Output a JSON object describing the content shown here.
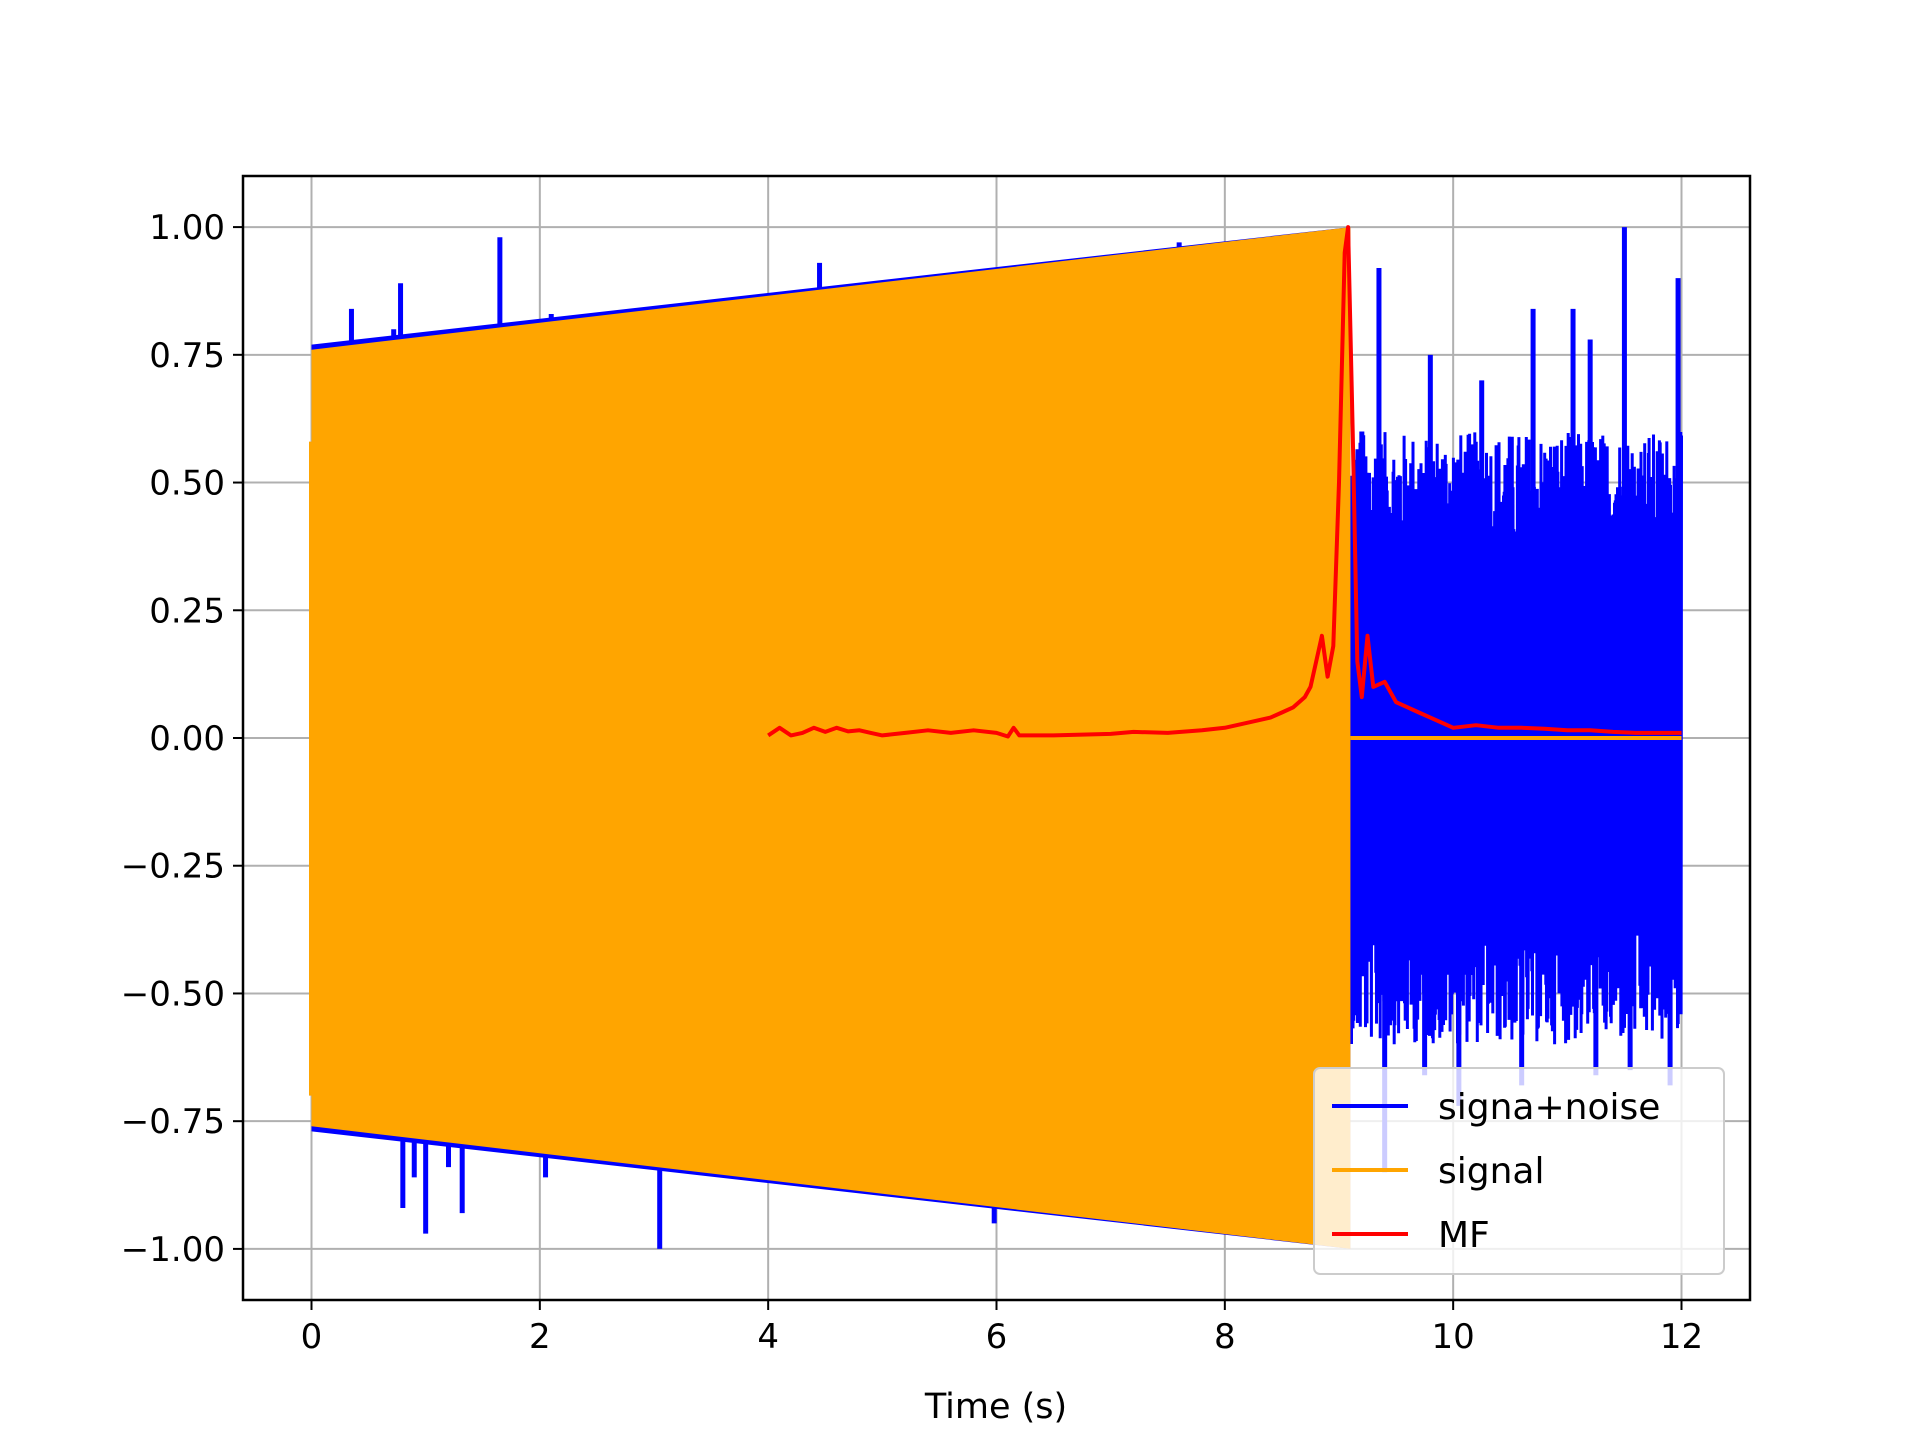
{
  "chart_data": {
    "type": "line",
    "title": "",
    "xlabel": "Time (s)",
    "ylabel": "",
    "xlim": [
      -0.6,
      12.6
    ],
    "ylim": [
      -1.1,
      1.1
    ],
    "grid": true,
    "legend_position": "lower-right",
    "x_ticks": [
      0,
      2,
      4,
      6,
      8,
      10,
      12
    ],
    "x_tick_labels": [
      "0",
      "2",
      "4",
      "6",
      "8",
      "10",
      "12"
    ],
    "y_ticks": [
      1.0,
      0.75,
      0.5,
      0.25,
      0.0,
      -0.25,
      -0.5,
      -0.75,
      -1.0
    ],
    "y_tick_labels": [
      "1.00",
      "0.75",
      "0.50",
      "0.25",
      "0.00",
      "−0.25",
      "−0.50",
      "−0.75",
      "−1.00"
    ],
    "series": [
      {
        "name": "signa+noise",
        "color": "#0000ff",
        "envelope": {
          "signal_portion": {
            "x_range": [
              0,
              9.1
            ],
            "amplitude_start": 0.77,
            "amplitude_end": 1.0
          },
          "noise_portion": {
            "x_range": [
              9.1,
              12.0
            ],
            "typical_amplitude": 0.6
          }
        },
        "spikes": [
          {
            "x": 0.35,
            "y": 0.84
          },
          {
            "x": 0.72,
            "y": 0.8
          },
          {
            "x": 0.78,
            "y": 0.89
          },
          {
            "x": 1.65,
            "y": 0.98
          },
          {
            "x": 2.1,
            "y": 0.83
          },
          {
            "x": 3.05,
            "y": 0.84
          },
          {
            "x": 4.45,
            "y": 0.93
          },
          {
            "x": 5.2,
            "y": 0.9
          },
          {
            "x": 7.6,
            "y": 0.97
          },
          {
            "x": 0.8,
            "y": -0.92
          },
          {
            "x": 0.9,
            "y": -0.86
          },
          {
            "x": 1.0,
            "y": -0.97
          },
          {
            "x": 1.2,
            "y": -0.84
          },
          {
            "x": 1.32,
            "y": -0.93
          },
          {
            "x": 1.58,
            "y": -0.8
          },
          {
            "x": 2.05,
            "y": -0.86
          },
          {
            "x": 2.45,
            "y": -0.82
          },
          {
            "x": 3.05,
            "y": -1.0
          },
          {
            "x": 5.98,
            "y": -0.95
          },
          {
            "x": 9.2,
            "y": 0.6
          },
          {
            "x": 9.35,
            "y": 0.92
          },
          {
            "x": 9.8,
            "y": 0.75
          },
          {
            "x": 10.7,
            "y": 0.84
          },
          {
            "x": 11.05,
            "y": 0.84
          },
          {
            "x": 11.5,
            "y": 1.0
          },
          {
            "x": 11.97,
            "y": 0.9
          },
          {
            "x": 11.2,
            "y": 0.78
          },
          {
            "x": 10.25,
            "y": 0.7
          },
          {
            "x": 9.4,
            "y": -0.85
          },
          {
            "x": 9.75,
            "y": -0.66
          },
          {
            "x": 10.05,
            "y": -0.72
          },
          {
            "x": 10.6,
            "y": -0.68
          },
          {
            "x": 11.25,
            "y": -0.66
          },
          {
            "x": 11.55,
            "y": -0.65
          },
          {
            "x": 11.9,
            "y": -0.68
          }
        ]
      },
      {
        "name": "signal",
        "color": "#ffa500",
        "envelope": {
          "x_range": [
            0,
            9.1
          ],
          "amplitude_start": 0.76,
          "amplitude_end": 1.0
        },
        "flat_after": {
          "x_range": [
            9.1,
            12.0
          ],
          "y": 0.0
        }
      },
      {
        "name": "MF",
        "color": "#ff0000",
        "x": [
          4.0,
          4.1,
          4.2,
          4.3,
          4.4,
          4.5,
          4.6,
          4.7,
          4.8,
          4.9,
          5.0,
          5.2,
          5.4,
          5.6,
          5.8,
          6.0,
          6.1,
          6.15,
          6.2,
          6.5,
          7.0,
          7.2,
          7.5,
          7.8,
          8.0,
          8.2,
          8.4,
          8.5,
          8.6,
          8.7,
          8.75,
          8.8,
          8.85,
          8.9,
          8.95,
          9.0,
          9.05,
          9.08,
          9.12,
          9.16,
          9.2,
          9.25,
          9.3,
          9.4,
          9.5,
          9.6,
          9.7,
          9.8,
          9.9,
          10.0,
          10.2,
          10.4,
          10.6,
          10.8,
          11.0,
          11.2,
          11.4,
          11.6,
          11.8,
          12.0
        ],
        "values": [
          0.005,
          0.02,
          0.005,
          0.01,
          0.02,
          0.012,
          0.02,
          0.013,
          0.015,
          0.01,
          0.005,
          0.01,
          0.015,
          0.01,
          0.015,
          0.01,
          0.003,
          0.02,
          0.005,
          0.005,
          0.008,
          0.012,
          0.01,
          0.015,
          0.02,
          0.03,
          0.04,
          0.05,
          0.06,
          0.08,
          0.1,
          0.15,
          0.2,
          0.12,
          0.18,
          0.5,
          0.95,
          1.0,
          0.6,
          0.15,
          0.08,
          0.2,
          0.1,
          0.11,
          0.07,
          0.06,
          0.05,
          0.04,
          0.03,
          0.02,
          0.025,
          0.02,
          0.02,
          0.018,
          0.015,
          0.015,
          0.012,
          0.01,
          0.01,
          0.01
        ]
      }
    ]
  }
}
